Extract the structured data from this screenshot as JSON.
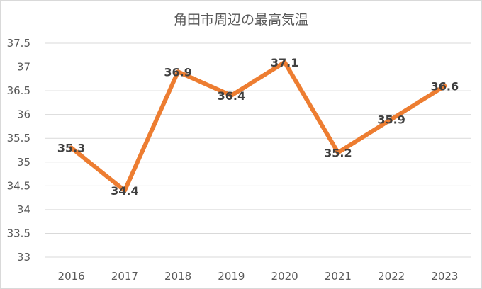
{
  "chart_data": {
    "type": "line",
    "title": "角田市周辺の最高気温",
    "categories": [
      "2016",
      "2017",
      "2018",
      "2019",
      "2020",
      "2021",
      "2022",
      "2023"
    ],
    "series": [
      {
        "values": [
          35.3,
          34.4,
          36.9,
          36.4,
          37.1,
          35.2,
          35.9,
          36.6
        ]
      }
    ],
    "y_ticks": [
      "33",
      "33.5",
      "34",
      "34.5",
      "35",
      "35.5",
      "36",
      "36.5",
      "37",
      "37.5"
    ],
    "ylim": [
      33,
      37.5
    ],
    "grid": true,
    "legend": "none",
    "line_color": "#ED7D31"
  }
}
